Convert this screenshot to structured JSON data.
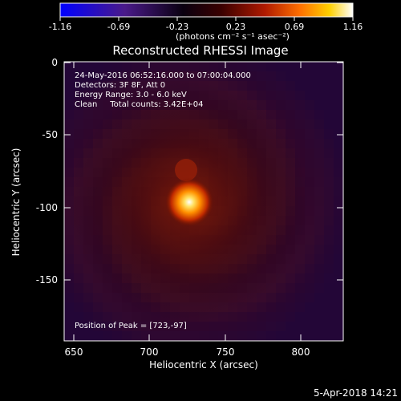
{
  "colorbar": {
    "min_label": "-1.16",
    "tick_labels": [
      "-1.16",
      "-0.69",
      "-0.23",
      "0.23",
      "0.69",
      "1.16"
    ],
    "units_label": "(photons cm⁻² s⁻¹ asec⁻²)",
    "colormap": [
      "#0000ff",
      "#2a1050",
      "#000000",
      "#5a0000",
      "#c02000",
      "#ff8000",
      "#ffd000",
      "#ffffff"
    ]
  },
  "image": {
    "title": "Reconstructed RHESSI Image",
    "info_lines": [
      "24-May-2016 06:52:16.000 to 07:00:04.000",
      "Detectors: 3F 8F, Att 0",
      "Energy Range: 3.0 - 6.0 keV",
      "Clean     Total counts: 3.42E+04"
    ],
    "peak_label": "Position of Peak = [723,-97]",
    "x_label": "Heliocentric X (arcsec)",
    "y_label": "Heliocentric Y (arcsec)",
    "x_ticks": [
      "650",
      "700",
      "750",
      "800"
    ],
    "y_ticks": [
      "0",
      "-50",
      "-100",
      "-150"
    ],
    "footer_timestamp": "5-Apr-2018 14:21"
  }
}
